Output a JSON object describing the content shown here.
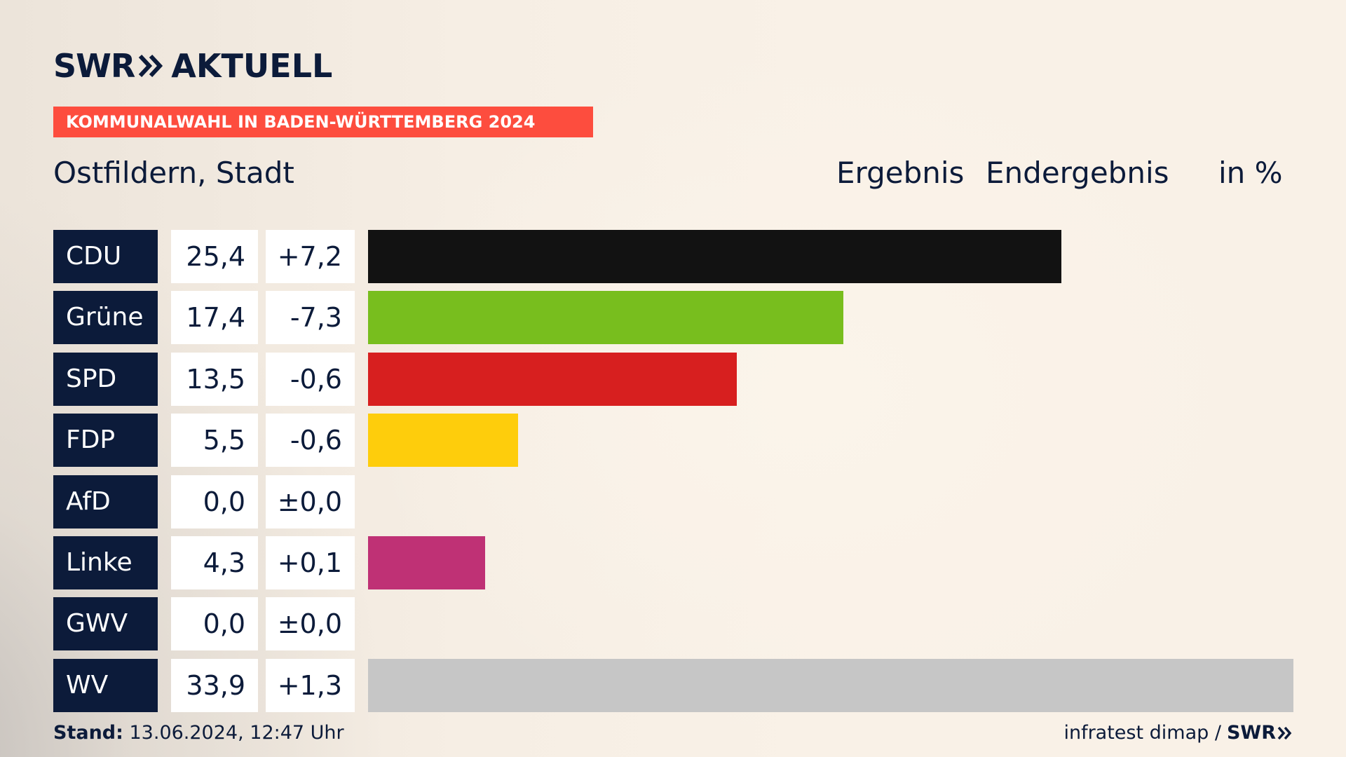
{
  "header": {
    "brand": "SWR",
    "brand_icon": "double-chevron-right-icon",
    "product": "AKTUELL",
    "banner": "KOMMUNALWAHL IN BADEN-WÜRTTEMBERG 2024",
    "place": "Ostfildern, Stadt",
    "col_ergebnis": "Ergebnis",
    "col_endergebnis": "Endergebnis",
    "col_unit": "in %"
  },
  "chart_data": {
    "type": "bar",
    "orientation": "horizontal",
    "categories": [
      "CDU",
      "Grüne",
      "SPD",
      "FDP",
      "AfD",
      "Linke",
      "GWV",
      "WV"
    ],
    "values": [
      25.4,
      17.4,
      13.5,
      5.5,
      0.0,
      4.3,
      0.0,
      33.9
    ],
    "values_label": [
      "25,4",
      "17,4",
      "13,5",
      "5,5",
      "0,0",
      "4,3",
      "0,0",
      "33,9"
    ],
    "diff_label": [
      "+7,2",
      "-7,3",
      "-0,6",
      "-0,6",
      "±0,0",
      "+0,1",
      "±0,0",
      "+1,3"
    ],
    "colors": [
      "#121212",
      "#78be1e",
      "#d71f1f",
      "#fecd0c",
      "#009fe1",
      "#bf3175",
      "#9ba0a9",
      "#c6c6c6"
    ],
    "xlim": [
      0,
      33.9
    ]
  },
  "footer": {
    "stand_label": "Stand:",
    "stand_value": " 13.06.2024, 12:47 Uhr",
    "source": "infratest dimap /",
    "source_brand": "SWR",
    "source_brand_icon": "double-chevron-right-icon"
  }
}
